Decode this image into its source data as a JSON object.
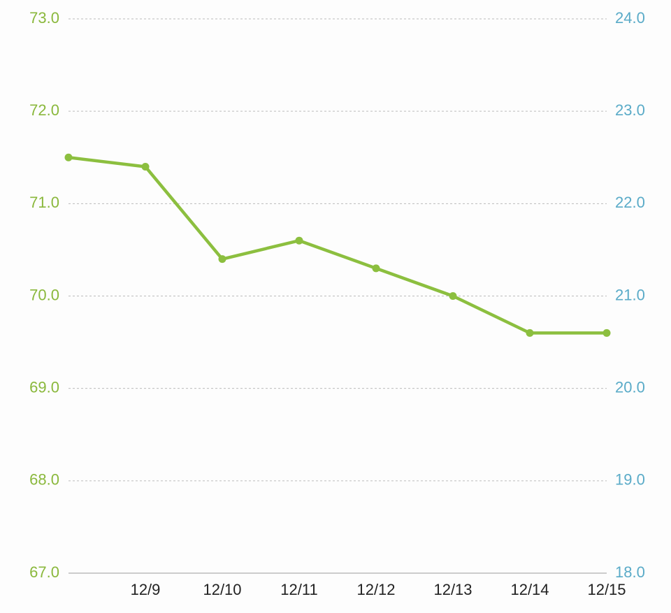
{
  "chart_data": {
    "type": "line",
    "categories": [
      null,
      "12/9",
      "12/10",
      "12/11",
      "12/12",
      "12/13",
      "12/14",
      "12/15"
    ],
    "values": [
      71.5,
      71.4,
      70.4,
      70.6,
      70.3,
      70.0,
      69.6,
      69.6
    ],
    "color": "#8cbf3f",
    "ylim": [
      67,
      73
    ],
    "yticks": [
      {
        "value": 67,
        "label": "67.0"
      },
      {
        "value": 68,
        "label": "68.0"
      },
      {
        "value": 69,
        "label": "69.0"
      },
      {
        "value": 70,
        "label": "70.0"
      },
      {
        "value": 71,
        "label": "71.0"
      },
      {
        "value": 72,
        "label": "72.0"
      },
      {
        "value": 73,
        "label": "73.0"
      }
    ],
    "y_tick_color": "#8ab83c",
    "y2lim": [
      18,
      24
    ],
    "y2ticks": [
      {
        "value": 18,
        "label": "18.0"
      },
      {
        "value": 19,
        "label": "19.0"
      },
      {
        "value": 20,
        "label": "20.0"
      },
      {
        "value": 21,
        "label": "21.0"
      },
      {
        "value": 22,
        "label": "22.0"
      },
      {
        "value": 23,
        "label": "23.0"
      },
      {
        "value": 24,
        "label": "24.0"
      }
    ],
    "y2_tick_color": "#5aabc8",
    "grid": true
  }
}
